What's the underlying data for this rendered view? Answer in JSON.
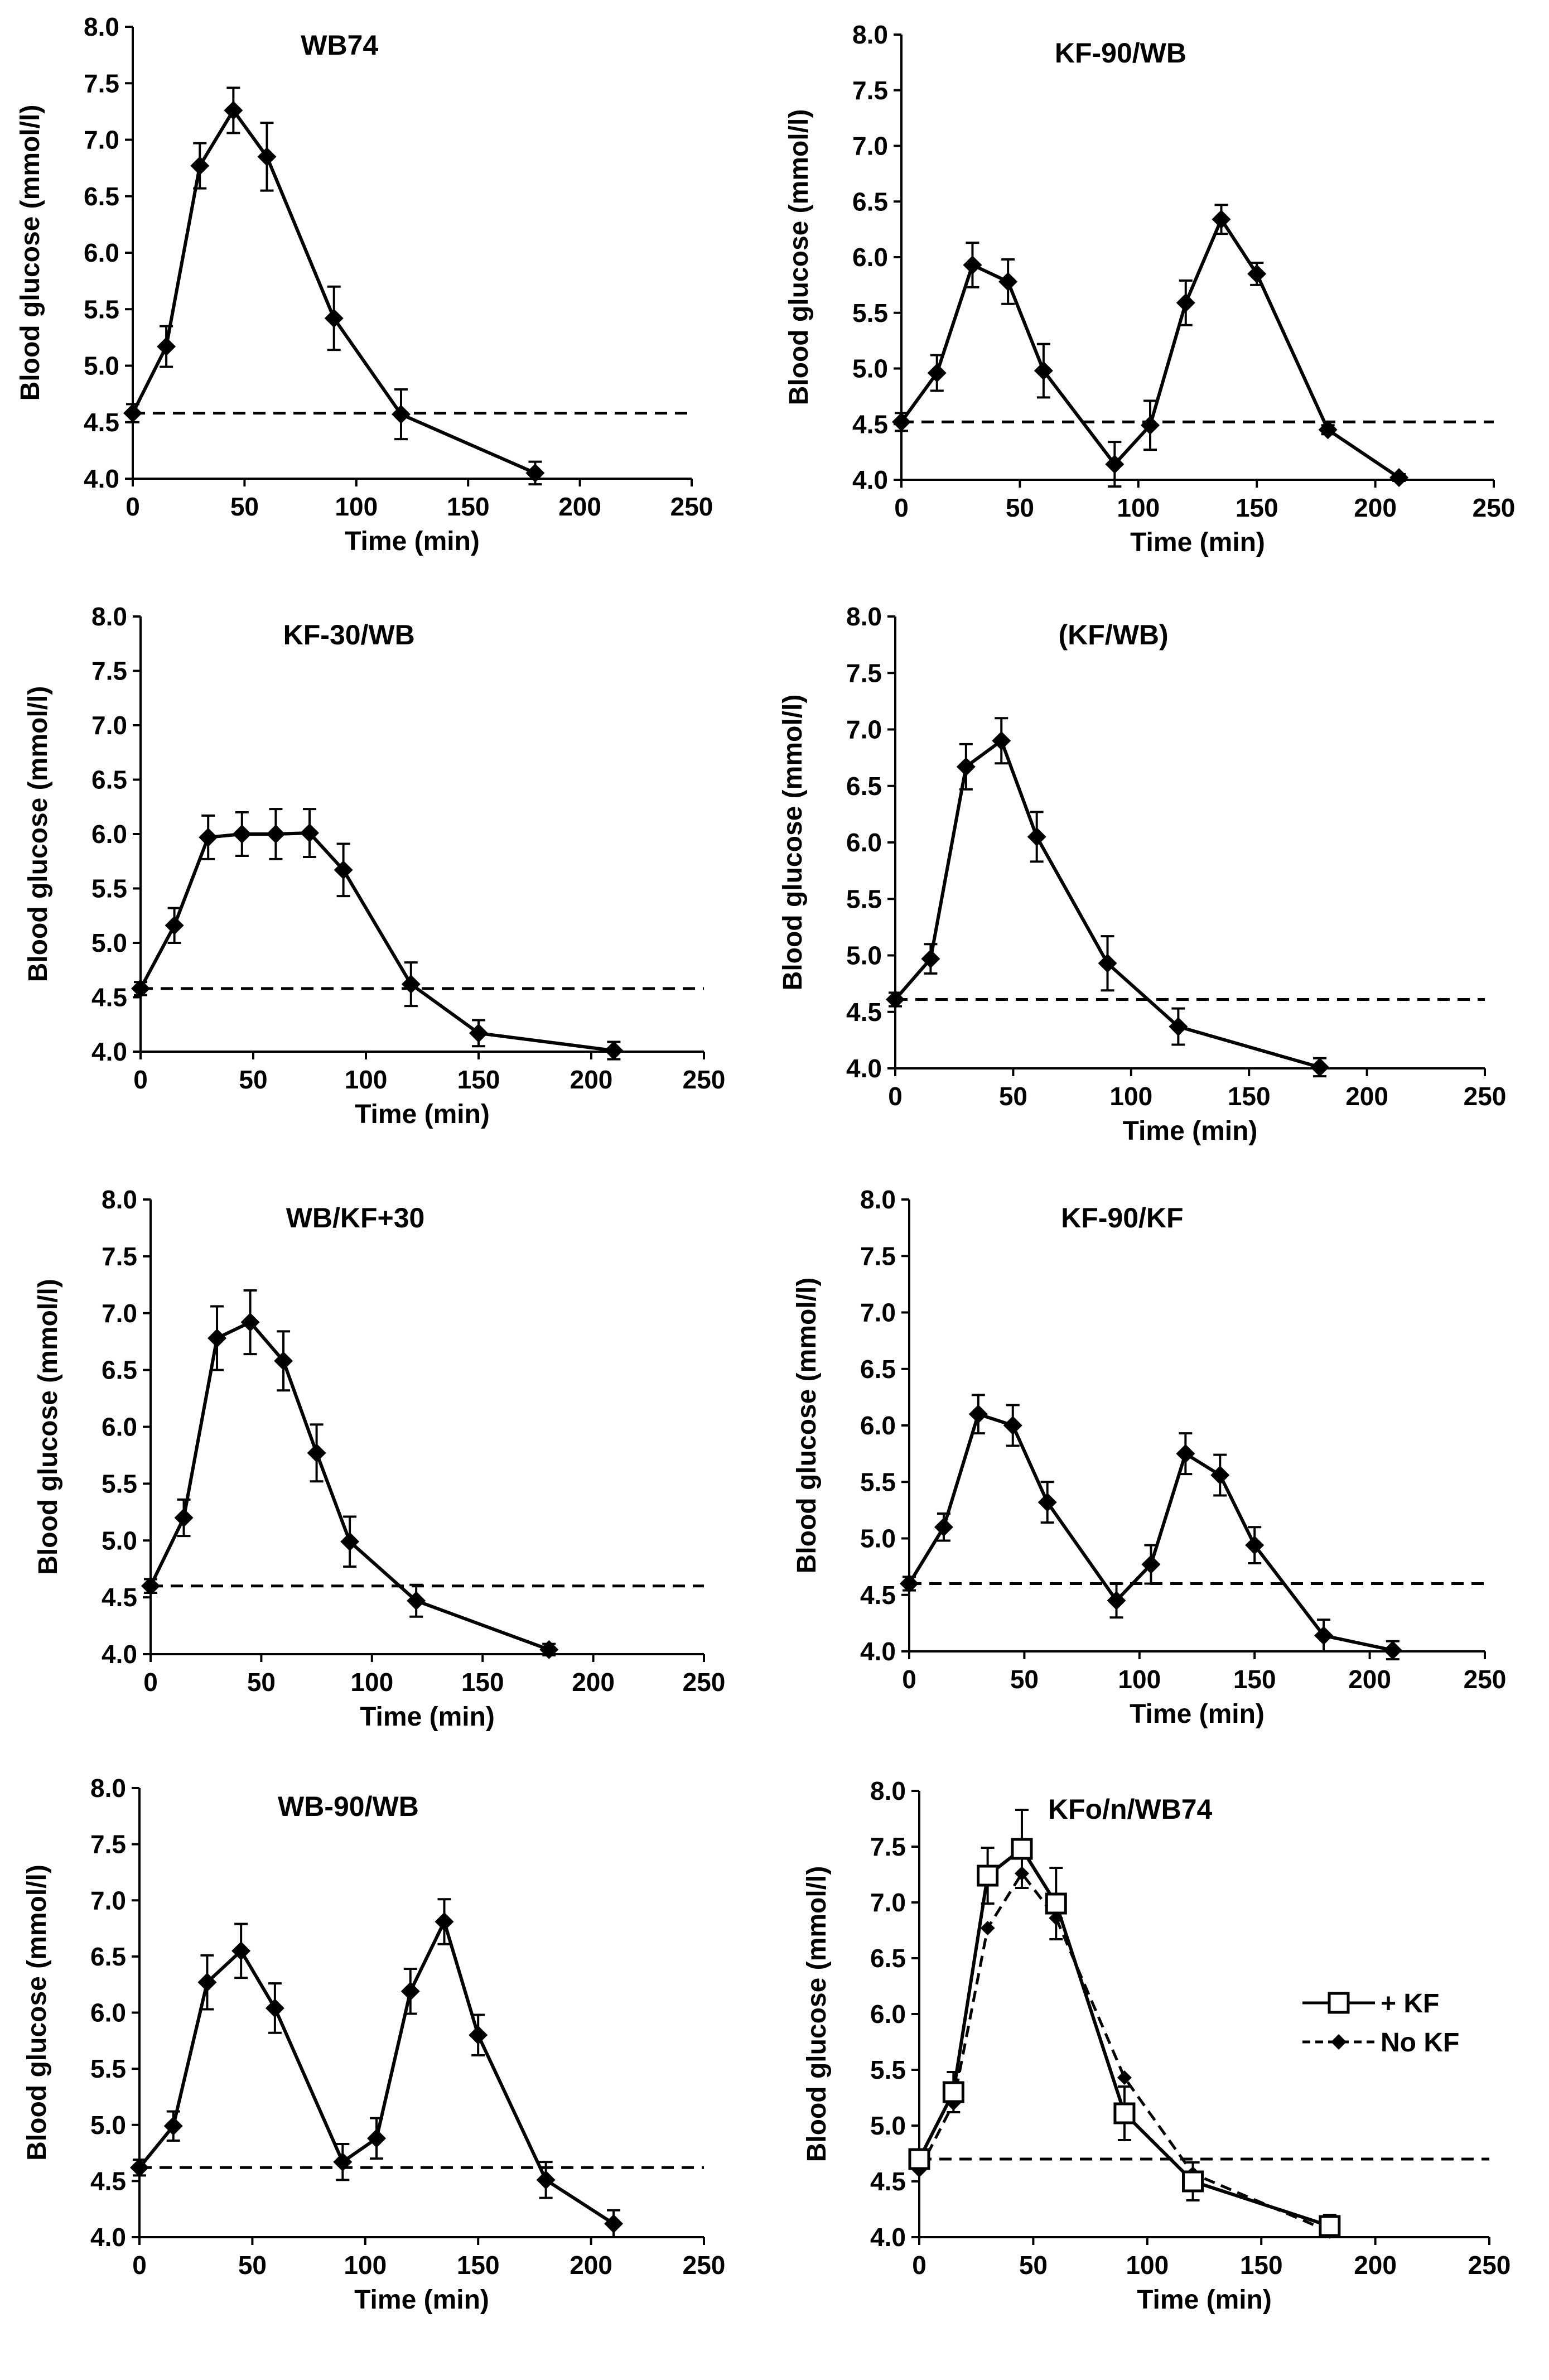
{
  "figure": {
    "description_label": "Blood glucose response curves",
    "colors": {
      "line": "#000000",
      "background": "#ffffff",
      "marker_open_fill": "#ffffff"
    }
  },
  "chart_data": [
    {
      "id": "wb74",
      "type": "line",
      "title": "WB74",
      "xlabel": "Time (min)",
      "ylabel": "Blood glucose (mmol/l)",
      "xlim": [
        0,
        250
      ],
      "ylim": [
        4.0,
        8.0
      ],
      "xticks": [
        "0",
        "50",
        "100",
        "150",
        "200",
        "250"
      ],
      "yticks": [
        "4.0",
        "4.5",
        "5.0",
        "5.5",
        "6.0",
        "6.5",
        "7.0",
        "7.5",
        "8.0"
      ],
      "baseline": 4.58,
      "series": [
        {
          "name": "WB74",
          "marker": "diamond",
          "line": "solid",
          "x": [
            0,
            15,
            30,
            45,
            60,
            90,
            120,
            180
          ],
          "y": [
            4.58,
            5.17,
            6.77,
            7.26,
            6.85,
            5.42,
            4.57,
            4.05
          ],
          "err": [
            0.08,
            0.18,
            0.2,
            0.2,
            0.3,
            0.28,
            0.22,
            0.1
          ]
        }
      ]
    },
    {
      "id": "kf90wb",
      "type": "line",
      "title": "KF-90/WB",
      "xlabel": "Time (min)",
      "ylabel": "Blood glucose (mmol/l)",
      "xlim": [
        0,
        250
      ],
      "ylim": [
        4.0,
        8.0
      ],
      "xticks": [
        "0",
        "50",
        "100",
        "150",
        "200",
        "250"
      ],
      "yticks": [
        "4.0",
        "4.5",
        "5.0",
        "5.5",
        "6.0",
        "6.5",
        "7.0",
        "7.5",
        "8.0"
      ],
      "baseline": 4.52,
      "series": [
        {
          "name": "KF-90/WB",
          "marker": "diamond",
          "line": "solid",
          "x": [
            0,
            15,
            30,
            45,
            60,
            90,
            105,
            120,
            135,
            150,
            180,
            210
          ],
          "y": [
            4.52,
            4.96,
            5.93,
            5.78,
            4.98,
            4.14,
            4.49,
            5.59,
            6.34,
            5.85,
            4.45,
            4.02
          ],
          "err": [
            0.08,
            0.16,
            0.2,
            0.2,
            0.24,
            0.2,
            0.22,
            0.2,
            0.13,
            0.1,
            0.04,
            0.03
          ]
        }
      ]
    },
    {
      "id": "kf30wb",
      "type": "line",
      "title": "KF-30/WB",
      "xlabel": "Time (min)",
      "ylabel": "Blood glucose (mmol/l)",
      "xlim": [
        0,
        250
      ],
      "ylim": [
        4.0,
        8.0
      ],
      "xticks": [
        "0",
        "50",
        "100",
        "150",
        "200",
        "250"
      ],
      "yticks": [
        "4.0",
        "4.5",
        "5.0",
        "5.5",
        "6.0",
        "6.5",
        "7.0",
        "7.5",
        "8.0"
      ],
      "baseline": 4.58,
      "series": [
        {
          "name": "KF-30/WB",
          "marker": "diamond",
          "line": "solid",
          "x": [
            0,
            15,
            30,
            45,
            60,
            75,
            90,
            120,
            150,
            210
          ],
          "y": [
            4.58,
            5.16,
            5.97,
            6.0,
            6.0,
            6.01,
            5.67,
            4.62,
            4.17,
            4.01
          ],
          "err": [
            0.06,
            0.16,
            0.2,
            0.2,
            0.23,
            0.22,
            0.24,
            0.2,
            0.12,
            0.08
          ]
        }
      ]
    },
    {
      "id": "kfwb",
      "type": "line",
      "title": "(KF/WB)",
      "xlabel": "Time (min)",
      "ylabel": "Blood glucose (mmol/l)",
      "xlim": [
        0,
        250
      ],
      "ylim": [
        4.0,
        8.0
      ],
      "xticks": [
        "0",
        "50",
        "100",
        "150",
        "200",
        "250"
      ],
      "yticks": [
        "4.0",
        "4.5",
        "5.0",
        "5.5",
        "6.0",
        "6.5",
        "7.0",
        "7.5",
        "8.0"
      ],
      "baseline": 4.61,
      "series": [
        {
          "name": "(KF/WB)",
          "marker": "diamond",
          "line": "solid",
          "x": [
            0,
            15,
            30,
            45,
            60,
            90,
            120,
            180
          ],
          "y": [
            4.61,
            4.97,
            6.67,
            6.9,
            6.05,
            4.93,
            4.37,
            4.01
          ],
          "err": [
            0.06,
            0.13,
            0.2,
            0.2,
            0.22,
            0.24,
            0.16,
            0.08
          ]
        }
      ]
    },
    {
      "id": "wbkf30",
      "type": "line",
      "title": "WB/KF+30",
      "xlabel": "Time (min)",
      "ylabel": "Blood glucose (mmol/l)",
      "xlim": [
        0,
        250
      ],
      "ylim": [
        4.0,
        8.0
      ],
      "xticks": [
        "0",
        "50",
        "100",
        "150",
        "200",
        "250"
      ],
      "yticks": [
        "4.0",
        "4.5",
        "5.0",
        "5.5",
        "6.0",
        "6.5",
        "7.0",
        "7.5",
        "8.0"
      ],
      "baseline": 4.6,
      "series": [
        {
          "name": "WB/KF+30",
          "marker": "diamond",
          "line": "solid",
          "x": [
            0,
            15,
            30,
            45,
            60,
            75,
            90,
            120,
            180
          ],
          "y": [
            4.6,
            5.2,
            6.78,
            6.92,
            6.58,
            5.77,
            4.99,
            4.47,
            4.04
          ],
          "err": [
            0.06,
            0.16,
            0.28,
            0.28,
            0.26,
            0.25,
            0.22,
            0.14,
            0.05
          ]
        }
      ]
    },
    {
      "id": "kf90kf",
      "type": "line",
      "title": "KF-90/KF",
      "xlabel": "Time (min)",
      "ylabel": "Blood glucose (mmol/l)",
      "xlim": [
        0,
        250
      ],
      "ylim": [
        4.0,
        8.0
      ],
      "xticks": [
        "0",
        "50",
        "100",
        "150",
        "200",
        "250"
      ],
      "yticks": [
        "4.0",
        "4.5",
        "5.0",
        "5.5",
        "6.0",
        "6.5",
        "7.0",
        "7.5",
        "8.0"
      ],
      "baseline": 4.6,
      "series": [
        {
          "name": "KF-90/KF",
          "marker": "diamond",
          "line": "solid",
          "x": [
            0,
            15,
            30,
            45,
            60,
            90,
            105,
            120,
            135,
            150,
            180,
            210
          ],
          "y": [
            4.6,
            5.1,
            6.1,
            6.0,
            5.32,
            4.45,
            4.77,
            5.75,
            5.56,
            4.94,
            4.14,
            4.01
          ],
          "err": [
            0.06,
            0.12,
            0.17,
            0.18,
            0.18,
            0.15,
            0.17,
            0.18,
            0.18,
            0.16,
            0.14,
            0.08
          ]
        }
      ]
    },
    {
      "id": "wb90wb",
      "type": "line",
      "title": "WB-90/WB",
      "xlabel": "Time (min)",
      "ylabel": "Blood glucose (mmol/l)",
      "xlim": [
        0,
        250
      ],
      "ylim": [
        4.0,
        8.0
      ],
      "xticks": [
        "0",
        "50",
        "100",
        "150",
        "200",
        "250"
      ],
      "yticks": [
        "4.0",
        "4.5",
        "5.0",
        "5.5",
        "6.0",
        "6.5",
        "7.0",
        "7.5",
        "8.0"
      ],
      "baseline": 4.62,
      "series": [
        {
          "name": "WB-90/WB",
          "marker": "diamond",
          "line": "solid",
          "x": [
            0,
            15,
            30,
            45,
            60,
            90,
            105,
            120,
            135,
            150,
            180,
            210
          ],
          "y": [
            4.62,
            4.99,
            6.27,
            6.55,
            6.04,
            4.67,
            4.88,
            6.19,
            6.81,
            5.8,
            4.51,
            4.12
          ],
          "err": [
            0.07,
            0.13,
            0.24,
            0.24,
            0.22,
            0.16,
            0.18,
            0.2,
            0.2,
            0.18,
            0.16,
            0.12
          ]
        }
      ]
    },
    {
      "id": "kfonwb74",
      "type": "line",
      "title": "KFo/n/WB74",
      "xlabel": "Time (min)",
      "ylabel": "Blood glucose (mmol/l)",
      "xlim": [
        0,
        250
      ],
      "ylim": [
        4.0,
        8.0
      ],
      "xticks": [
        "0",
        "50",
        "100",
        "150",
        "200",
        "250"
      ],
      "yticks": [
        "4.0",
        "4.5",
        "5.0",
        "5.5",
        "6.0",
        "6.5",
        "7.0",
        "7.5",
        "8.0"
      ],
      "baseline": 4.7,
      "legend": {
        "position": "right",
        "entries": [
          "+ KF",
          "No KF"
        ]
      },
      "series": [
        {
          "name": "+ KF",
          "marker": "square-open",
          "line": "solid",
          "x": [
            0,
            15,
            30,
            45,
            60,
            90,
            120,
            180
          ],
          "y": [
            4.7,
            5.3,
            7.24,
            7.48,
            6.99,
            5.11,
            4.5,
            4.1
          ],
          "err": [
            0.08,
            0.18,
            0.25,
            0.35,
            0.32,
            0.24,
            0.17,
            0.1
          ]
        },
        {
          "name": "No KF",
          "marker": "diamond",
          "line": "dashed",
          "x": [
            0,
            15,
            30,
            45,
            60,
            90,
            120,
            180
          ],
          "y": [
            4.6,
            5.2,
            6.77,
            7.26,
            6.86,
            5.43,
            4.57,
            4.05
          ],
          "err": [
            0,
            0,
            0,
            0,
            0,
            0,
            0,
            0
          ]
        }
      ]
    }
  ]
}
